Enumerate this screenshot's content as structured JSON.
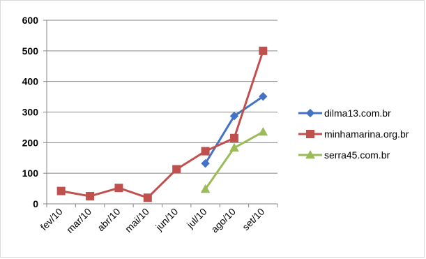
{
  "chart_data": {
    "type": "line",
    "title": "",
    "xlabel": "",
    "ylabel": "",
    "categories": [
      "fev/10",
      "mar/10",
      "abr/10",
      "mai/10",
      "jun/10",
      "jul/10",
      "ago/10",
      "set/10"
    ],
    "ylim": [
      0,
      600
    ],
    "yticks": [
      0,
      100,
      200,
      300,
      400,
      500,
      600
    ],
    "grid": "horizontal-major",
    "legend_position": "right",
    "series": [
      {
        "name": "dilma13.com.br",
        "color": "#4472C4",
        "marker": "diamond",
        "values": [
          null,
          null,
          null,
          null,
          null,
          132,
          287,
          351
        ]
      },
      {
        "name": "minhamarina.org.br",
        "color": "#C0504D",
        "marker": "square",
        "values": [
          42,
          25,
          52,
          20,
          113,
          172,
          215,
          500
        ]
      },
      {
        "name": "serra45.com.br",
        "color": "#9BBB59",
        "marker": "triangle",
        "values": [
          null,
          null,
          null,
          null,
          null,
          48,
          183,
          235
        ]
      }
    ]
  }
}
